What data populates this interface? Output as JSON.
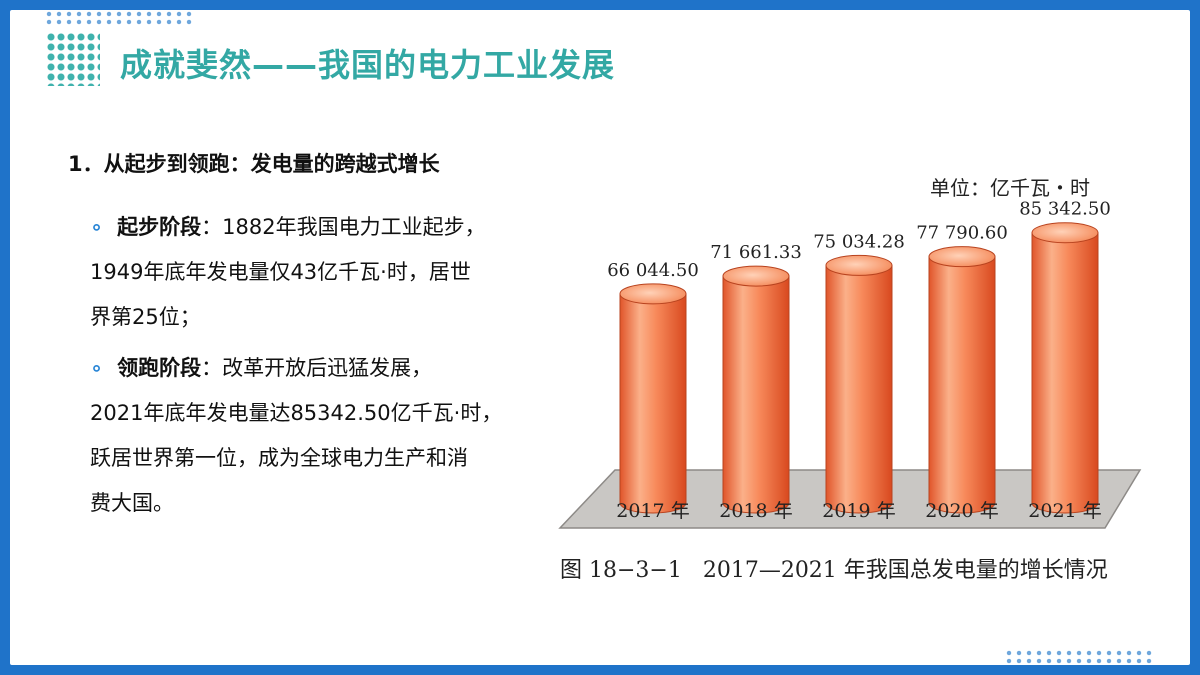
{
  "slide": {
    "title": "成就斐然——我国的电力工业发展",
    "heading": "1．从起步到领跑：发电量的跨越式增长",
    "bullets": [
      {
        "marker": "∘",
        "label": "起步阶段",
        "lines": [
          "：1882年我国电力工业起步，",
          "1949年底年发电量仅43亿千瓦·时，居世",
          "界第25位；"
        ]
      },
      {
        "marker": "∘",
        "label": "领跑阶段",
        "lines": [
          "：改革开放后迅猛发展，",
          "2021年底年发电量达85342.50亿千瓦·时，",
          "跃居世界第一位，成为全球电力生产和消",
          "费大国。"
        ]
      }
    ]
  },
  "chart_data": {
    "type": "bar",
    "title": "",
    "caption": "图 18−3−1   2017—2021 年我国总发电量的增长情况",
    "unit_label": "单位：亿千瓦・时",
    "categories": [
      "2017 年",
      "2018 年",
      "2019 年",
      "2020 年",
      "2021 年"
    ],
    "values": [
      66044.5,
      71661.33,
      75034.28,
      77790.6,
      85342.5
    ],
    "value_labels": [
      "66 044.50",
      "71 661.33",
      "75 034.28",
      "77 790.60",
      "85 342.50"
    ],
    "bar_color": "#f0703e"
  }
}
